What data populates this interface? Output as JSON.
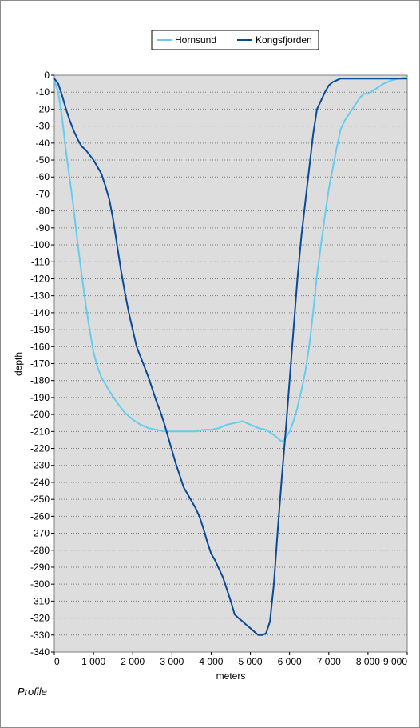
{
  "chart_data": {
    "type": "line",
    "title": "",
    "xlabel": "meters",
    "ylabel": "depth",
    "xlim": [
      0,
      9000
    ],
    "ylim": [
      -340,
      0
    ],
    "x_ticks": [
      0,
      1000,
      2000,
      3000,
      4000,
      5000,
      6000,
      7000,
      8000,
      9000
    ],
    "x_tick_labels": [
      "0",
      "1 000",
      "2 000",
      "3 000",
      "4 000",
      "5 000",
      "6 000",
      "7 000",
      "8 000",
      "9 000"
    ],
    "y_ticks": [
      0,
      -10,
      -20,
      -30,
      -40,
      -50,
      -60,
      -70,
      -80,
      -90,
      -100,
      -110,
      -120,
      -130,
      -140,
      -150,
      -160,
      -170,
      -180,
      -190,
      -200,
      -210,
      -220,
      -230,
      -240,
      -250,
      -260,
      -270,
      -280,
      -290,
      -300,
      -310,
      -320,
      -330,
      -340
    ],
    "y_tick_labels": [
      "0",
      "-10",
      "-20",
      "-30",
      "-40",
      "-50",
      "-60",
      "-70",
      "-80",
      "-90",
      "-100",
      "-110",
      "-120",
      "-130",
      "-140",
      "-150",
      "-160",
      "-170",
      "-180",
      "-190",
      "-200",
      "-210",
      "-220",
      "-230",
      "-240",
      "-250",
      "-260",
      "-270",
      "-280",
      "-290",
      "-300",
      "-310",
      "-320",
      "-330",
      "-340"
    ],
    "grid": "horizontal dotted",
    "plot_background": "#dddddd",
    "legend_position": "top-right",
    "series": [
      {
        "name": "Hornsund",
        "color": "#66ccee",
        "x": [
          0,
          100,
          200,
          300,
          400,
          500,
          600,
          700,
          800,
          900,
          1000,
          1100,
          1200,
          1300,
          1400,
          1600,
          1800,
          2000,
          2200,
          2400,
          2600,
          2800,
          3000,
          3200,
          3400,
          3600,
          3800,
          4000,
          4200,
          4400,
          4600,
          4800,
          5000,
          5200,
          5400,
          5600,
          5700,
          5800,
          5900,
          6000,
          6100,
          6200,
          6300,
          6400,
          6500,
          6600,
          6700,
          6800,
          6900,
          7000,
          7100,
          7200,
          7300,
          7400,
          7600,
          7800,
          7900,
          8000,
          8200,
          8400,
          8600,
          8800,
          9000
        ],
        "y": [
          -3,
          -10,
          -25,
          -45,
          -62,
          -80,
          -100,
          -118,
          -135,
          -150,
          -163,
          -172,
          -178,
          -182,
          -186,
          -193,
          -199,
          -203,
          -206,
          -208,
          -209,
          -210,
          -210,
          -210,
          -210,
          -210,
          -209,
          -209,
          -208,
          -206,
          -205,
          -204,
          -206,
          -208,
          -209,
          -212,
          -214,
          -216,
          -214,
          -210,
          -204,
          -196,
          -186,
          -175,
          -160,
          -140,
          -118,
          -100,
          -83,
          -67,
          -55,
          -43,
          -32,
          -27,
          -20,
          -13,
          -11,
          -11,
          -8,
          -5,
          -3,
          -2,
          -1
        ]
      },
      {
        "name": "Kongsfjorden",
        "color": "#0a4a96",
        "x": [
          0,
          100,
          200,
          300,
          400,
          500,
          600,
          700,
          800,
          900,
          1000,
          1100,
          1200,
          1300,
          1400,
          1500,
          1600,
          1700,
          1800,
          1900,
          2000,
          2100,
          2200,
          2300,
          2400,
          2500,
          2600,
          2700,
          2800,
          2900,
          3000,
          3100,
          3200,
          3300,
          3400,
          3500,
          3600,
          3700,
          3800,
          3900,
          4000,
          4100,
          4200,
          4300,
          4400,
          4500,
          4600,
          4700,
          4800,
          4900,
          5000,
          5100,
          5200,
          5300,
          5400,
          5500,
          5600,
          5700,
          5800,
          5900,
          6000,
          6100,
          6200,
          6300,
          6400,
          6500,
          6600,
          6700,
          6800,
          6900,
          7000,
          7100,
          7200,
          7300,
          7400,
          7500,
          7600,
          7700,
          7800,
          7900,
          8000,
          8100,
          8200,
          8300,
          8400,
          8500,
          8600,
          8700,
          8800,
          8900,
          9000
        ],
        "y": [
          -2,
          -5,
          -12,
          -20,
          -27,
          -33,
          -38,
          -42,
          -44,
          -47,
          -50,
          -54,
          -58,
          -65,
          -73,
          -85,
          -100,
          -115,
          -128,
          -140,
          -150,
          -160,
          -166,
          -172,
          -178,
          -185,
          -192,
          -198,
          -205,
          -213,
          -221,
          -229,
          -236,
          -243,
          -247,
          -251,
          -255,
          -260,
          -267,
          -275,
          -282,
          -286,
          -291,
          -296,
          -303,
          -310,
          -318,
          -320,
          -322,
          -324,
          -326,
          -328,
          -330,
          -330,
          -329,
          -322,
          -300,
          -268,
          -238,
          -210,
          -180,
          -150,
          -120,
          -95,
          -75,
          -55,
          -35,
          -20,
          -15,
          -10,
          -6,
          -4,
          -3,
          -2,
          -2,
          -2,
          -2,
          -2,
          -2,
          -2,
          -2,
          -2,
          -2,
          -2,
          -2,
          -2,
          -2,
          -2,
          -2,
          -2,
          -2
        ]
      }
    ]
  },
  "caption": "Profile"
}
